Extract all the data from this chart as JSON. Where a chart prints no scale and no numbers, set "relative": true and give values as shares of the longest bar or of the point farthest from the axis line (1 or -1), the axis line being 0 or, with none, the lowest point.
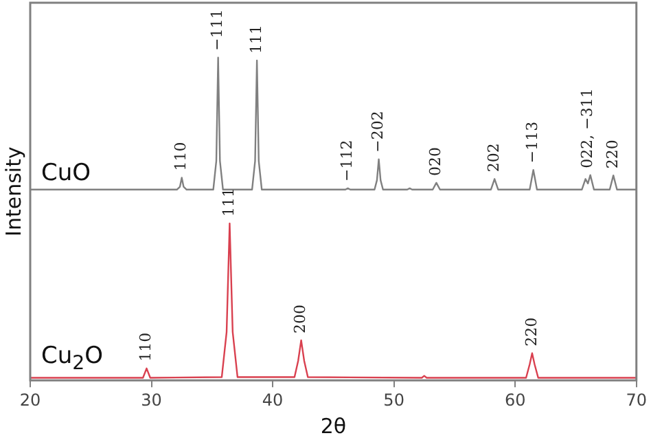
{
  "chart_data": {
    "type": "line",
    "xlabel": "2θ",
    "ylabel": "Intensity",
    "relative": true,
    "tick_labels": "x",
    "legend": false,
    "grid": false,
    "marker": "none",
    "line_style": "solid",
    "xlim": [
      20,
      70
    ],
    "xticks": [
      20,
      30,
      40,
      50,
      60,
      70
    ],
    "series": [
      {
        "name": "CuO",
        "color": "#808080",
        "x": [
          20,
          32.1,
          32.35,
          32.5,
          32.65,
          32.9,
          35.1,
          35.35,
          35.5,
          35.65,
          35.9,
          38.3,
          38.55,
          38.7,
          38.85,
          39.1,
          46.0,
          46.2,
          46.4,
          48.4,
          48.6,
          48.75,
          48.9,
          49.1,
          51.1,
          51.3,
          51.5,
          53.2,
          53.5,
          53.8,
          58.0,
          58.3,
          58.6,
          61.2,
          61.5,
          61.8,
          65.5,
          65.8,
          66.0,
          66.2,
          66.5,
          67.8,
          68.1,
          68.4,
          70
        ],
        "values": [
          0.591,
          0.591,
          0.6,
          0.628,
          0.6,
          0.591,
          0.591,
          0.68,
          1.0,
          0.68,
          0.591,
          0.591,
          0.68,
          0.991,
          0.68,
          0.591,
          0.591,
          0.595,
          0.591,
          0.591,
          0.62,
          0.685,
          0.62,
          0.591,
          0.591,
          0.595,
          0.591,
          0.591,
          0.612,
          0.591,
          0.591,
          0.624,
          0.591,
          0.591,
          0.652,
          0.591,
          0.591,
          0.624,
          0.61,
          0.636,
          0.591,
          0.591,
          0.635,
          0.591,
          0.591
        ]
      },
      {
        "name": "Cu$_{2}$O",
        "color": "#d9404f",
        "x": [
          20,
          29.3,
          29.6,
          29.9,
          35.8,
          36.2,
          36.45,
          36.7,
          37.1,
          41.8,
          42.1,
          42.35,
          42.6,
          42.9,
          52.3,
          52.5,
          52.7,
          60.9,
          61.2,
          61.4,
          61.6,
          61.9,
          70
        ],
        "values": [
          0.008,
          0.008,
          0.037,
          0.008,
          0.01,
          0.15,
          0.486,
          0.15,
          0.01,
          0.01,
          0.06,
          0.124,
          0.06,
          0.01,
          0.008,
          0.014,
          0.008,
          0.008,
          0.05,
          0.084,
          0.05,
          0.008,
          0.008
        ]
      }
    ],
    "annotations": [
      {
        "text": "110",
        "x": 32.5,
        "y": 0.628
      },
      {
        "text": "−111",
        "x": 35.5,
        "y": 1.0
      },
      {
        "text": "111",
        "x": 38.7,
        "y": 0.991
      },
      {
        "text": "−112",
        "x": 46.2,
        "y": 0.595
      },
      {
        "text": "−202",
        "x": 48.75,
        "y": 0.685
      },
      {
        "text": "020",
        "x": 53.5,
        "y": 0.612
      },
      {
        "text": "202",
        "x": 58.3,
        "y": 0.624
      },
      {
        "text": "−113",
        "x": 61.5,
        "y": 0.652
      },
      {
        "text": "022, −311",
        "x": 66.0,
        "y": 0.636
      },
      {
        "text": "220",
        "x": 68.1,
        "y": 0.635
      },
      {
        "text": "110",
        "x": 29.6,
        "y": 0.037
      },
      {
        "text": "111",
        "x": 36.45,
        "y": 0.486
      },
      {
        "text": "200",
        "x": 42.35,
        "y": 0.124
      },
      {
        "text": "220",
        "x": 61.4,
        "y": 0.084
      }
    ]
  }
}
